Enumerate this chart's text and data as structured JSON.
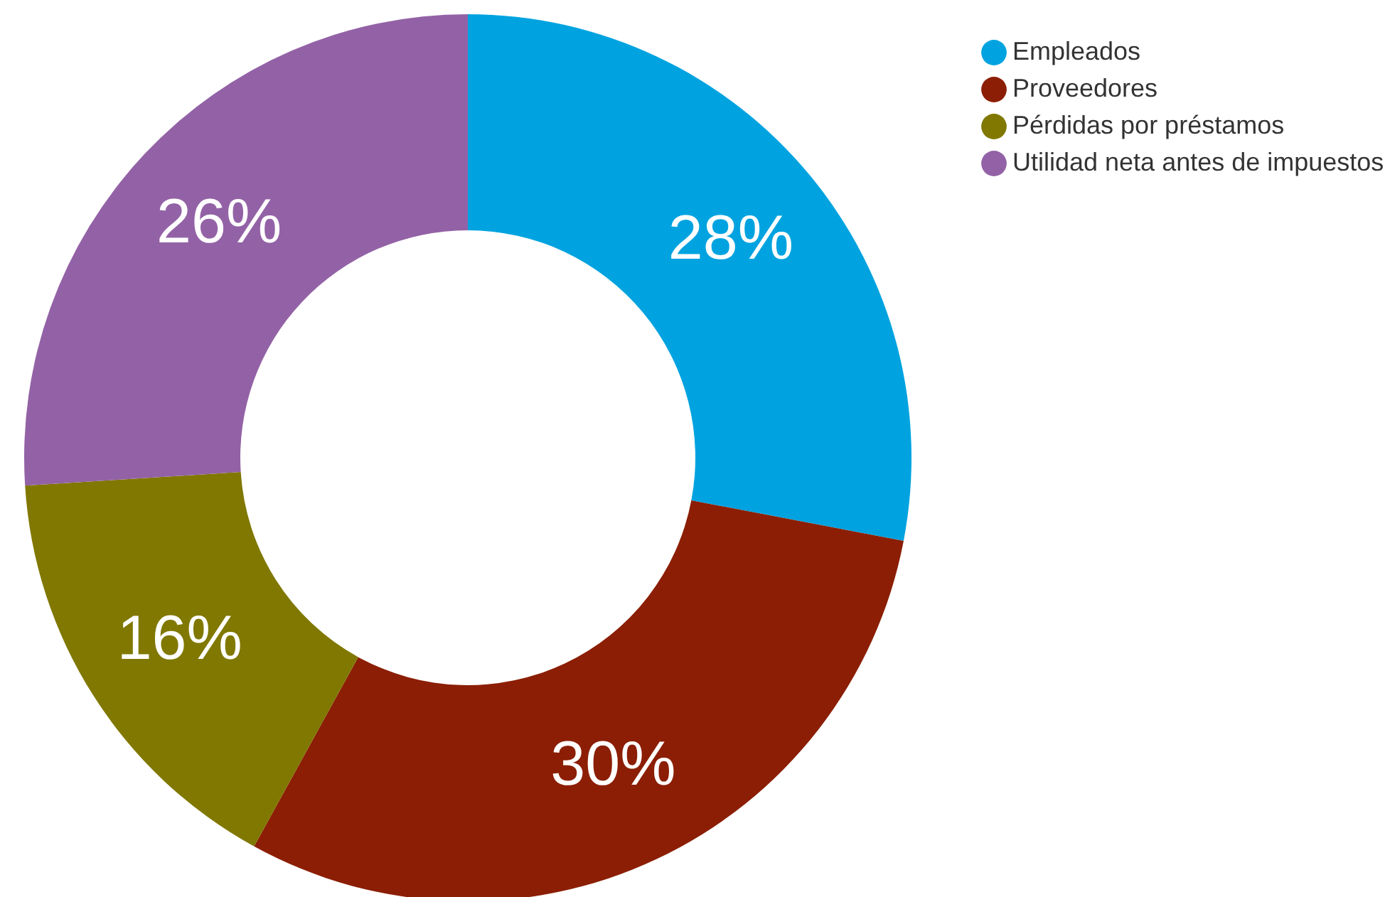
{
  "chart_data": {
    "type": "donut",
    "categories": [
      "Empleados",
      "Proveedores",
      "Pérdidas por préstamos",
      "Utilidad neta antes de impuestos"
    ],
    "values": [
      28,
      30,
      16,
      26
    ],
    "colors": [
      "#00a3e0",
      "#8b1e04",
      "#807800",
      "#9362a6"
    ],
    "value_labels": [
      "28%",
      "30%",
      "16%",
      "26%"
    ],
    "legend": "top right"
  }
}
